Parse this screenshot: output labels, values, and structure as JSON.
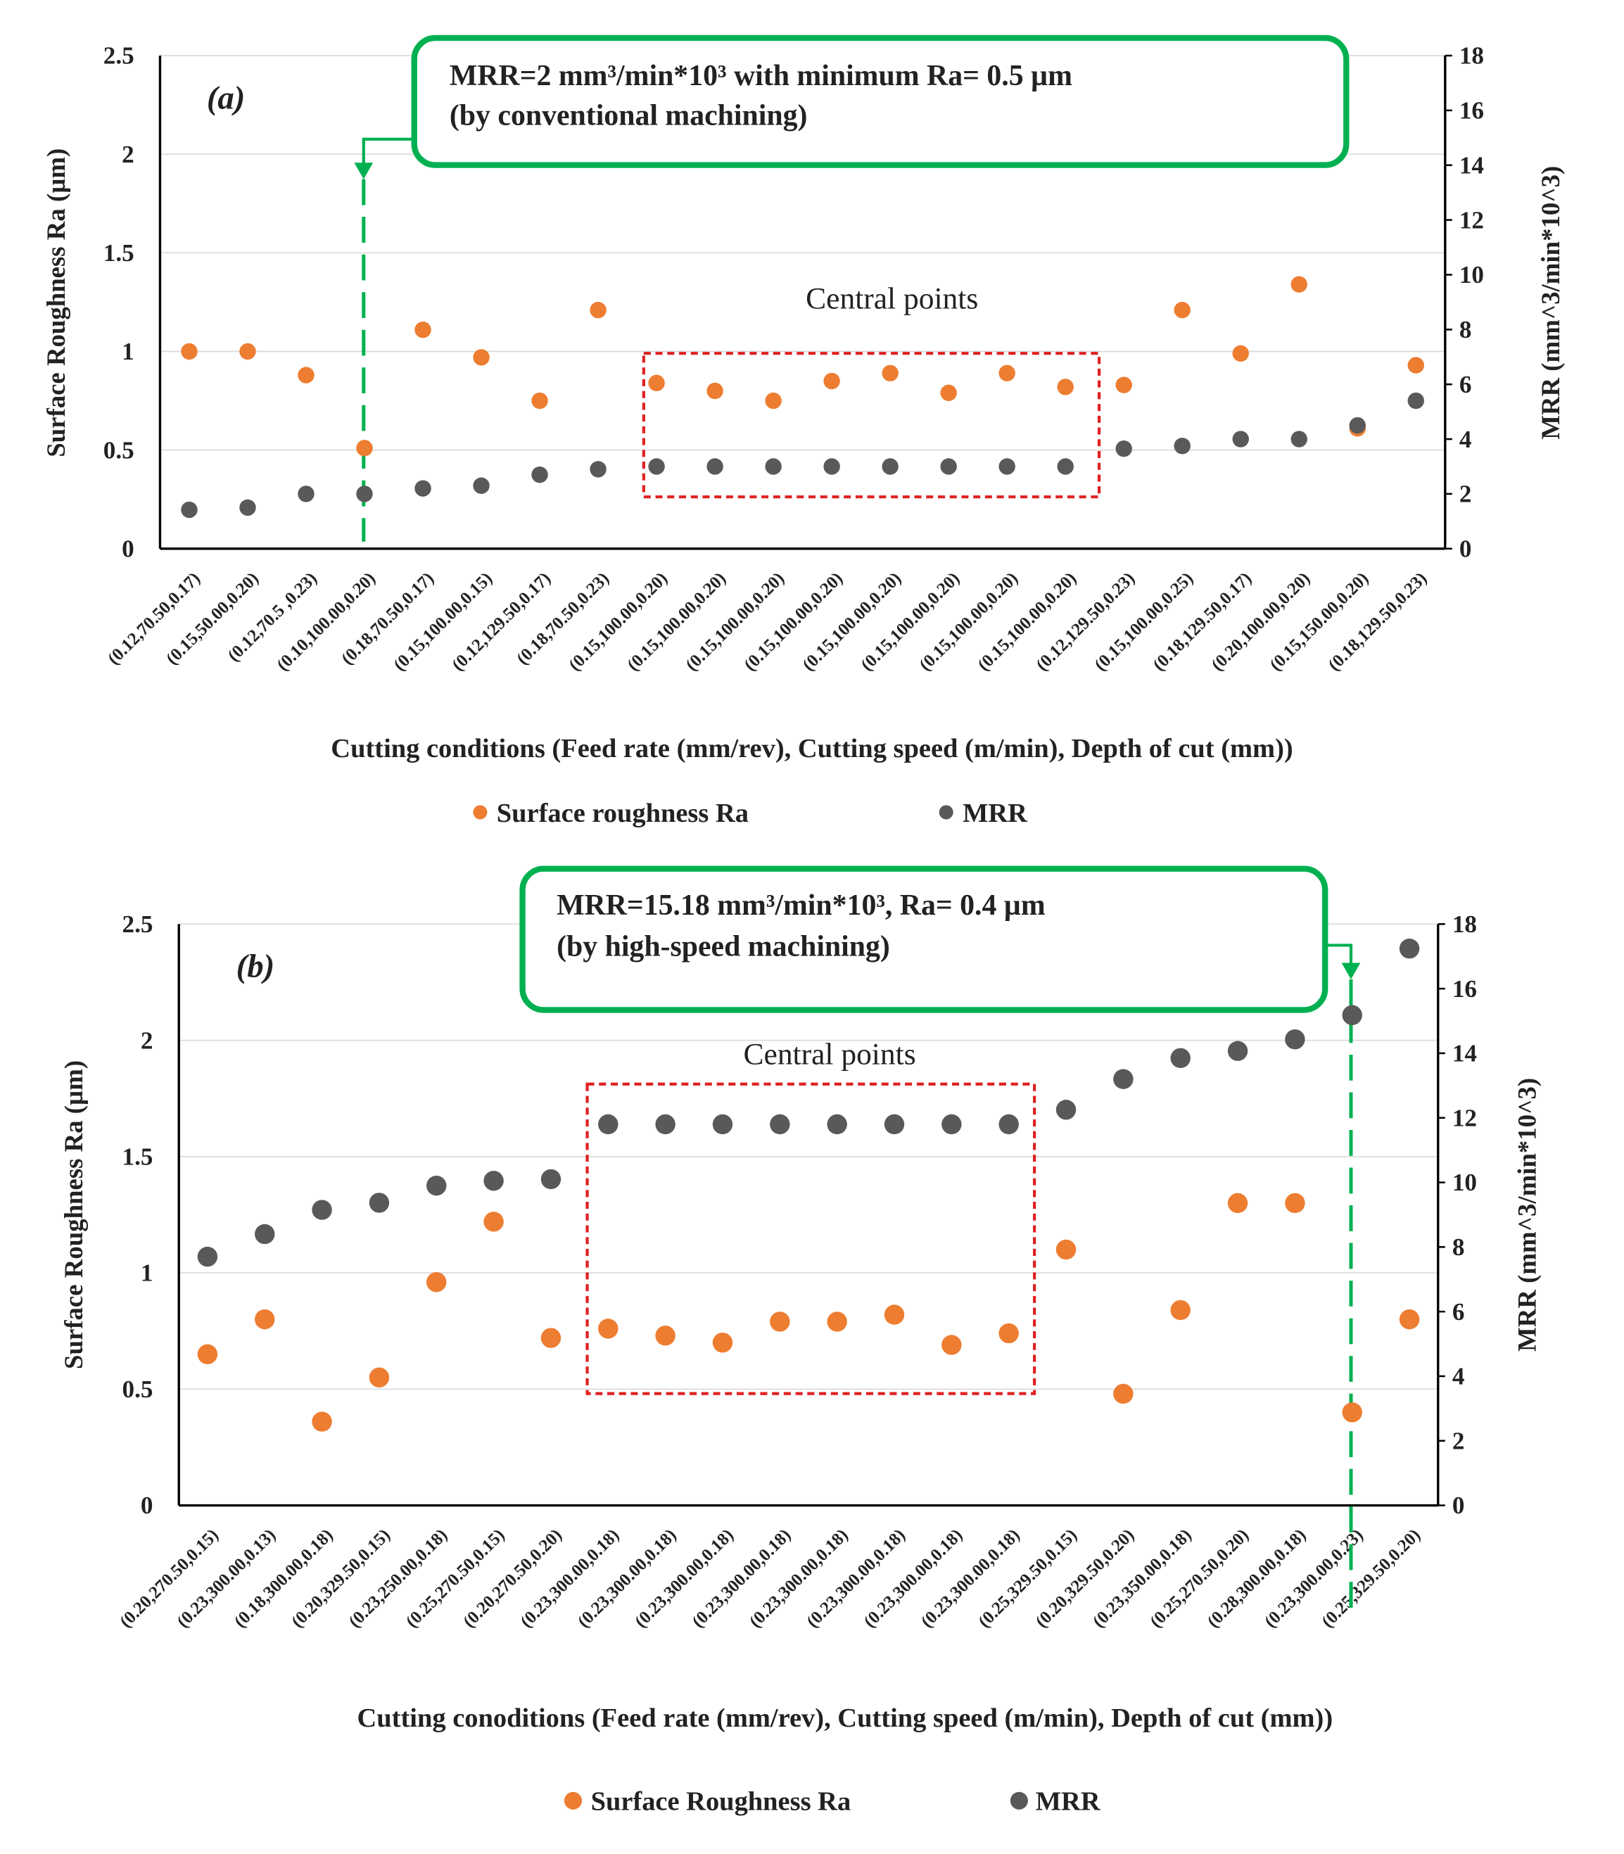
{
  "chart_data": [
    {
      "type": "scatter",
      "panel_label": "(a)",
      "callout": [
        "MRR=2 mm³/min*10³ with minimum Ra= 0.5 µm",
        "(by conventional machining)"
      ],
      "region_label": "Central points",
      "x_label": "Cutting conditions (Feed rate (mm/rev), Cutting speed (m/min), Depth of cut (mm))",
      "y_label": "Surface Roughness Ra (µm)",
      "y2_label": "MRR (mm^3/min*10^3)",
      "categories": [
        "(0.12,70.50,0.17)",
        "(0.15,50.00,0.20)",
        "(0.12,70.5 ,0.23)",
        "(0.10,100.00,0.20)",
        "(0.18,70.50,0.17)",
        "(0.15,100.00,0.15)",
        "(0.12,129.50,0.17)",
        "(0.18,70.50,0.23)",
        "(0.15,100.00,0.20)",
        "(0.15,100.00,0.20)",
        "(0.15,100.00,0.20)",
        "(0.15,100.00,0.20)",
        "(0.15,100.00,0.20)",
        "(0.15,100.00,0.20)",
        "(0.15,100.00,0.20)",
        "(0.15,100.00,0.20)",
        "(0.12,129.50,0.23)",
        "(0.15,100.00,0.25)",
        "(0.18,129.50,0.17)",
        "(0.20,100.00,0.20)",
        "(0.15,150.00,0.20)",
        "(0.18,129.50,0.23)"
      ],
      "series": [
        {
          "name": "Surface roughness Ra",
          "color": "#ed7d31",
          "values": [
            1.0,
            1.0,
            0.88,
            0.51,
            1.11,
            0.97,
            0.75,
            1.21,
            0.84,
            0.8,
            0.75,
            0.85,
            0.89,
            0.79,
            0.89,
            0.82,
            0.83,
            1.21,
            0.99,
            1.34,
            0.61,
            0.93
          ]
        },
        {
          "name": "MRR",
          "color": "#595959",
          "axis": "y2",
          "values": [
            1.42,
            1.5,
            2.0,
            2.0,
            2.2,
            2.3,
            2.7,
            2.9,
            3.0,
            3.0,
            3.0,
            3.0,
            3.0,
            3.0,
            3.0,
            3.0,
            3.65,
            3.75,
            4.0,
            4.0,
            4.5,
            5.4
          ]
        }
      ],
      "ylim": [
        0,
        2.5
      ],
      "yticks": [
        0,
        0.5,
        1,
        1.5,
        2,
        2.5
      ],
      "y2lim": [
        0,
        18
      ],
      "y2ticks": [
        0,
        2,
        4,
        6,
        8,
        10,
        12,
        14,
        16,
        18
      ],
      "grid": true
    },
    {
      "type": "scatter",
      "panel_label": "(b)",
      "callout": [
        "MRR=15.18 mm³/min*10³, Ra= 0.4 µm",
        "(by high-speed machining)"
      ],
      "region_label": "Central points",
      "x_label": "Cutting conoditions (Feed rate (mm/rev), Cutting speed (m/min), Depth of cut (mm))",
      "y_label": "Surface Roughness Ra (µm)",
      "y2_label": "MRR (mm^3/min*10^3)",
      "categories": [
        "(0.20,270.50,0.15)",
        "(0.23,300.00,0.13)",
        "(0.18,300.00,0.18)",
        "(0.20,329.50,0.15)",
        "(0.23,250.00,0.18)",
        "(0.25,270.50,0.15)",
        "(0.20,270.50,0.20)",
        "(0.23,300.00,0.18)",
        "(0.23,300.00,0.18)",
        "(0.23,300.00,0.18)",
        "(0.23,300.00,0.18)",
        "(0.23,300.00,0.18)",
        "(0.23,300.00,0.18)",
        "(0.23,300.00,0.18)",
        "(0.23,300.00,0.18)",
        "(0.25,329.50,0.15)",
        "(0.20,329.50,0.20)",
        "(0.23,350.00,0.18)",
        "(0.25,270.50,0.20)",
        "(0.28,300.00,0.18)",
        "(0.23,300.00,0.23)",
        "(0.25,329.50,0.20)"
      ],
      "series": [
        {
          "name": "Surface Roughness Ra",
          "color": "#ed7d31",
          "values": [
            0.65,
            0.8,
            0.36,
            0.55,
            0.96,
            1.22,
            0.72,
            0.76,
            0.73,
            0.7,
            0.79,
            0.79,
            0.82,
            0.69,
            0.74,
            1.1,
            0.48,
            0.84,
            1.3,
            1.3,
            0.4,
            0.8
          ]
        },
        {
          "name": "MRR",
          "color": "#595959",
          "axis": "y2",
          "values": [
            7.7,
            8.4,
            9.15,
            9.37,
            9.9,
            10.05,
            10.1,
            11.8,
            11.8,
            11.8,
            11.8,
            11.8,
            11.8,
            11.8,
            11.8,
            12.25,
            13.2,
            13.85,
            14.07,
            14.43,
            15.18,
            17.24
          ]
        }
      ],
      "ylim": [
        0,
        2.5
      ],
      "yticks": [
        0,
        0.5,
        1,
        1.5,
        2,
        2.5
      ],
      "y2lim": [
        0,
        18
      ],
      "y2ticks": [
        0,
        2,
        4,
        6,
        8,
        10,
        12,
        14,
        16,
        18
      ],
      "grid": true
    }
  ]
}
